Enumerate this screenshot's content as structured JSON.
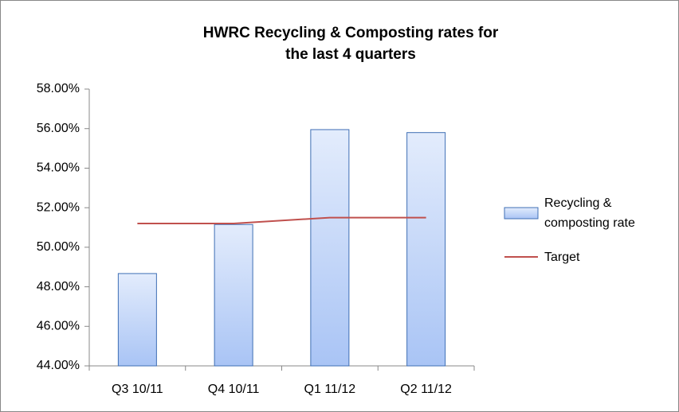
{
  "chart_data": {
    "type": "bar",
    "title": "HWRC Recycling & Composting rates for the last 4 quarters",
    "categories": [
      "Q3 10/11",
      "Q4 10/11",
      "Q1 11/12",
      "Q2 11/12"
    ],
    "series": [
      {
        "name": "Recycling & composting rate",
        "type": "bar",
        "color": "#a9c4f5",
        "values": [
          48.67,
          51.15,
          55.95,
          55.8
        ]
      },
      {
        "name": "Target",
        "type": "line",
        "color": "#c0504d",
        "values": [
          51.2,
          51.2,
          51.5,
          51.5
        ]
      }
    ],
    "ylim": [
      44,
      58
    ],
    "yticks": [
      {
        "value": 44,
        "label": "44.00%"
      },
      {
        "value": 46,
        "label": "46.00%"
      },
      {
        "value": 48,
        "label": "48.00%"
      },
      {
        "value": 50,
        "label": "50.00%"
      },
      {
        "value": 52,
        "label": "52.00%"
      },
      {
        "value": 54,
        "label": "54.00%"
      },
      {
        "value": 56,
        "label": "56.00%"
      },
      {
        "value": 58,
        "label": "58.00%"
      }
    ],
    "legend": "right",
    "grid": false
  }
}
